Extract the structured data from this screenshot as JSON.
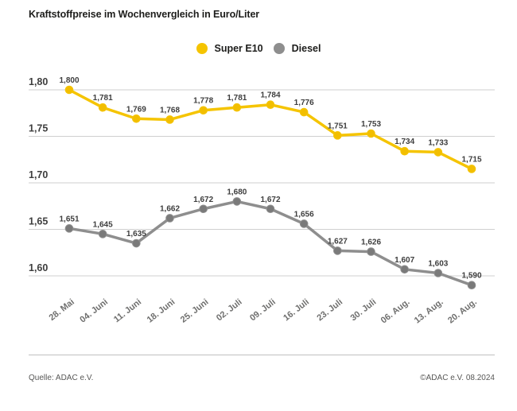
{
  "header": {
    "title": "Kraftstoffpreise im Wochenvergleich in Euro/Liter"
  },
  "footer": {
    "source": "Quelle: ADAC e.V.",
    "copyright": "©ADAC e.V. 08.2024"
  },
  "colors": {
    "title_text": "#1D1D1B",
    "grid_line": "#CFCFCF",
    "y_axis_label": "#3E3E3E",
    "x_axis_label": "#6F6F6E",
    "value_label": "#3E3E3E",
    "divider": "#BFBFBF",
    "footer_text": "#575756",
    "background": "#FFFFFF"
  },
  "chart_data": {
    "type": "line",
    "title": "Kraftstoffpreise im Wochenvergleich in Euro/Liter",
    "xlabel": "",
    "ylabel": "Euro/Liter",
    "categories": [
      "28. Mai",
      "04. Juni",
      "11. Juni",
      "18. Juni",
      "25. Juni",
      "02. Juli",
      "09. Juli",
      "16. Juli",
      "23. Juli",
      "30. Juli",
      "06. Aug.",
      "13. Aug.",
      "20. Aug."
    ],
    "series": [
      {
        "name": "Super E10",
        "color": "#F5C400",
        "dot_color": "#F2BE00",
        "values": [
          1.8,
          1.781,
          1.769,
          1.768,
          1.778,
          1.781,
          1.784,
          1.776,
          1.751,
          1.753,
          1.734,
          1.733,
          1.715
        ]
      },
      {
        "name": "Diesel",
        "color": "#8E8E8E",
        "dot_color": "#7A7A7A",
        "values": [
          1.651,
          1.645,
          1.635,
          1.662,
          1.672,
          1.68,
          1.672,
          1.656,
          1.627,
          1.626,
          1.607,
          1.603,
          1.59
        ]
      }
    ],
    "y_ticks": [
      1.8,
      1.75,
      1.7,
      1.65,
      1.6
    ],
    "ylim": [
      1.575,
      1.815
    ],
    "decimal_separator": ",",
    "grid": true,
    "legend_position": "top",
    "value_labels": true
  }
}
